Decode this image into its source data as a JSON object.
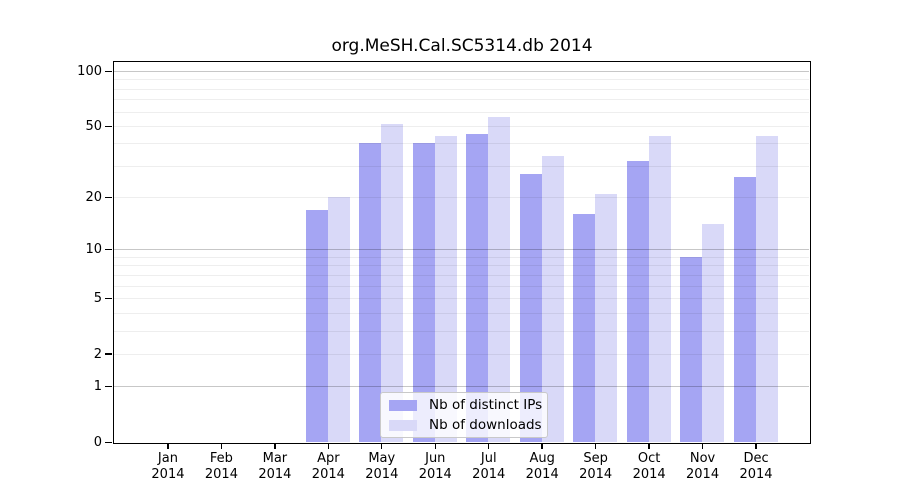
{
  "chart_data": {
    "type": "bar",
    "title": "org.MeSH.Cal.SC5314.db 2014",
    "year": "2014",
    "categories": [
      "Jan",
      "Feb",
      "Mar",
      "Apr",
      "May",
      "Jun",
      "Jul",
      "Aug",
      "Sep",
      "Oct",
      "Nov",
      "Dec"
    ],
    "series": [
      {
        "name": "Nb of distinct IPs",
        "color": "#a5a5f3",
        "values": [
          0,
          0,
          0,
          17,
          40,
          40,
          45,
          27,
          16,
          32,
          9,
          26
        ]
      },
      {
        "name": "Nb of downloads",
        "color": "#d9d9f8",
        "values": [
          0,
          0,
          0,
          20,
          51,
          44,
          56,
          34,
          21,
          44,
          14,
          44
        ]
      }
    ],
    "xlabel": "",
    "ylabel": "",
    "yaxis": {
      "scale": "log1p",
      "tick_labels": [
        "100",
        "50",
        "20",
        "10",
        "5",
        "2",
        "1",
        "0"
      ],
      "tick_values": [
        100,
        50,
        20,
        10,
        5,
        2,
        1,
        0
      ],
      "minor_gridlines": [
        2,
        3,
        4,
        5,
        6,
        7,
        8,
        9,
        20,
        30,
        40,
        50,
        60,
        70,
        80,
        90
      ],
      "major_gridlines": [
        1,
        10,
        100
      ],
      "ylim": [
        0,
        112
      ]
    },
    "grid": "on",
    "legend_position": "bottom-center",
    "frame_color": "#000000",
    "background_color": "#ffffff"
  }
}
